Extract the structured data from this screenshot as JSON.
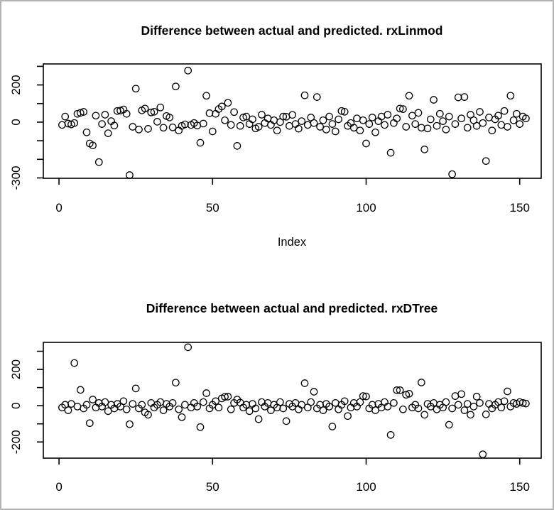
{
  "window": {
    "background": "#ffffff",
    "border_color": "#b3b3b3",
    "foreground": "#000000"
  },
  "chart_data": [
    {
      "type": "scatter",
      "title": "Difference between actual and predicted. rxLinmod",
      "xlabel": "Index",
      "ylabel": "",
      "marker": "open-circle",
      "grid": false,
      "legend": "none",
      "xlim": [
        -5.1,
        157.0
      ],
      "ylim": [
        -302,
        313
      ],
      "x_ticks": [
        0,
        50,
        100,
        150
      ],
      "y_ticks": [
        -300,
        -200,
        -100,
        0,
        100,
        200,
        300
      ],
      "y_tick_labels": [
        -300,
        0,
        200
      ],
      "x_description": "Index, sequential 1..152",
      "x_start": 1,
      "n": 152,
      "y": [
        -15,
        30,
        -8,
        -12,
        -5,
        45,
        50,
        55,
        -55,
        -115,
        -125,
        35,
        -215,
        -10,
        40,
        -60,
        5,
        -18,
        60,
        62,
        68,
        45,
        -285,
        -25,
        180,
        -40,
        63,
        73,
        -36,
        52,
        56,
        2,
        79,
        -30,
        33,
        25,
        -28,
        192,
        -45,
        -20,
        -12,
        277,
        -15,
        -5,
        -18,
        -111,
        -8,
        142,
        48,
        -50,
        45,
        70,
        84,
        10,
        104,
        -15,
        54,
        -128,
        -20,
        25,
        30,
        -10,
        15,
        -34,
        -25,
        40,
        -5,
        20,
        -15,
        10,
        -45,
        0,
        30,
        29,
        -20,
        39,
        -10,
        -35,
        5,
        144,
        -15,
        25,
        -5,
        135,
        -25,
        10,
        -40,
        30,
        -10,
        -50,
        15,
        60,
        56,
        -20,
        -5,
        -30,
        20,
        -45,
        10,
        -115,
        -10,
        25,
        -55,
        5,
        30,
        -15,
        40,
        -165,
        -5,
        20,
        73,
        70,
        -25,
        142,
        35,
        -10,
        50,
        -30,
        -147,
        -34,
        15,
        120,
        -20,
        45,
        5,
        -40,
        30,
        -280,
        -10,
        133,
        20,
        135,
        -30,
        40,
        10,
        -20,
        55,
        -5,
        -209,
        25,
        -45,
        15,
        35,
        -15,
        60,
        -25,
        142,
        10,
        45,
        -10,
        30,
        20
      ]
    },
    {
      "type": "scatter",
      "title": "Difference between actual and predicted. rxDTree",
      "xlabel": "",
      "ylabel": "",
      "marker": "open-circle",
      "grid": false,
      "legend": "none",
      "xlim": [
        -5.1,
        157.0
      ],
      "ylim": [
        -289,
        349
      ],
      "x_ticks": [
        0,
        50,
        100,
        150
      ],
      "y_ticks": [
        -200,
        -100,
        0,
        100,
        200,
        300
      ],
      "y_tick_labels": [
        -200,
        0,
        200
      ],
      "x_description": "Index, sequential 1..152",
      "x_start": 1,
      "n": 152,
      "y": [
        -10,
        5,
        -25,
        10,
        235,
        -5,
        87,
        -15,
        5,
        -96,
        34,
        -10,
        15,
        -5,
        20,
        -30,
        5,
        -15,
        10,
        -5,
        25,
        -20,
        -102,
        10,
        95,
        -15,
        5,
        -37,
        -50,
        15,
        -10,
        5,
        20,
        -25,
        10,
        -5,
        15,
        127,
        -20,
        -63,
        5,
        322,
        -10,
        15,
        -5,
        -118,
        20,
        69,
        -15,
        5,
        25,
        -10,
        40,
        49,
        50,
        -20,
        15,
        34,
        17,
        -10,
        5,
        -30,
        10,
        -15,
        -74,
        20,
        -5,
        15,
        -25,
        5,
        -10,
        20,
        -15,
        -85,
        10,
        -5,
        15,
        -20,
        5,
        124,
        -10,
        20,
        77,
        -15,
        5,
        -25,
        10,
        -5,
        -115,
        15,
        -20,
        5,
        25,
        -57,
        -10,
        15,
        -5,
        20,
        53,
        51,
        -15,
        5,
        -25,
        10,
        -10,
        20,
        -5,
        -161,
        15,
        85,
        85,
        -20,
        60,
        66,
        -10,
        5,
        -15,
        128,
        -50,
        10,
        -5,
        15,
        -20,
        5,
        -10,
        20,
        -105,
        -15,
        53,
        5,
        64,
        -25,
        10,
        -50,
        -5,
        50,
        15,
        -268,
        -48,
        10,
        -15,
        5,
        20,
        -10,
        25,
        79,
        -5,
        15,
        10,
        20,
        15,
        12
      ]
    }
  ]
}
